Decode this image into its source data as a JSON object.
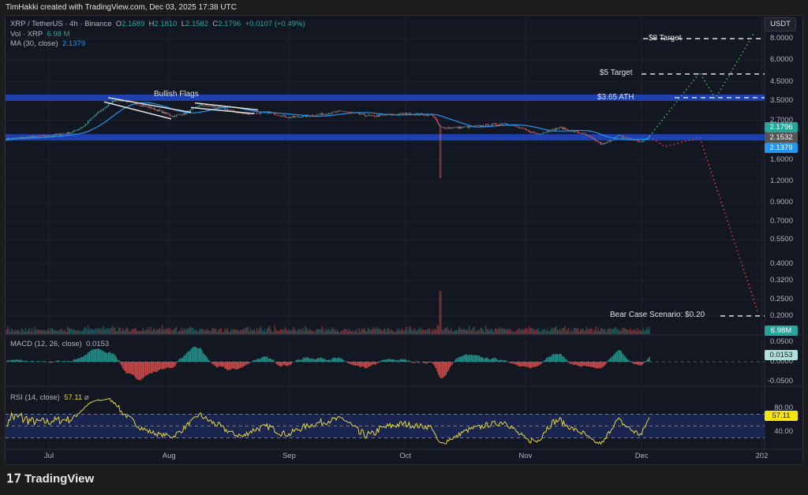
{
  "header": {
    "attribution": "TimHakki created with TradingView.com, Dec 03, 2025 17:38 UTC"
  },
  "legend": {
    "symbol": "XRP / TetherUS · 4h · Binance",
    "o_label": "O",
    "o": "2.1689",
    "h_label": "H",
    "h": "2.1810",
    "l_label": "L",
    "l": "2.1582",
    "c_label": "C",
    "c": "2.1796",
    "change": "+0.0107 (+0.49%)",
    "vol_label": "Vol · XRP",
    "vol": "6.98 M",
    "ma_label": "MA (30, close)",
    "ma": "2.1379",
    "macd_label": "MACD (12, 26, close)",
    "macd": "0.0153",
    "rsi_label": "RSI (14, close)",
    "rsi": "57.11"
  },
  "currency_button": "USDT",
  "price_tags": {
    "last": "2.1796",
    "support": "2.1532",
    "ma": "2.1379",
    "volume": "6.98M",
    "macd": "0.0153",
    "rsi": "57.11"
  },
  "colors": {
    "up": "#26a69a",
    "down": "#ef5350",
    "ma": "#2196f3",
    "band": "#1e40b0",
    "rsi": "#e8d53a",
    "bull_path": "#4caf50",
    "bear_path": "#e53946"
  },
  "annotations": {
    "flags": "Bullish Flags",
    "t8": "$8 Target",
    "t5": "$5 Target",
    "ath": "$3.65 ATH",
    "bear": "Bear Case Scenario: $0.20"
  },
  "footer": {
    "logo": "TradingView"
  },
  "chart_data": {
    "type": "candlestick",
    "scale": "log",
    "price_axis_ticks": [
      "8.0000",
      "6.0000",
      "4.5000",
      "3.5000",
      "2.7000",
      "1.6000",
      "1.2000",
      "0.9000",
      "0.7000",
      "0.5500",
      "0.4000",
      "0.3200",
      "0.2500",
      "0.2000"
    ],
    "macd_axis_ticks": [
      "0.0500",
      "0.0000",
      "-0.0500"
    ],
    "rsi_axis_ticks": [
      "80.00",
      "40.00"
    ],
    "time_ticks": [
      {
        "label": "Jul",
        "date": "2025-07-01"
      },
      {
        "label": "Aug",
        "date": "2025-08-01"
      },
      {
        "label": "Sep",
        "date": "2025-09-01"
      },
      {
        "label": "Oct",
        "date": "2025-10-01"
      },
      {
        "label": "Nov",
        "date": "2025-11-01"
      },
      {
        "label": "Dec",
        "date": "2025-12-01"
      },
      {
        "label": "202",
        "date": "2026-01-01"
      }
    ],
    "closes": [
      [
        "2025-06-20",
        2.1
      ],
      [
        "2025-06-25",
        2.15
      ],
      [
        "2025-07-01",
        2.2
      ],
      [
        "2025-07-07",
        2.3
      ],
      [
        "2025-07-10",
        2.5
      ],
      [
        "2025-07-13",
        2.9
      ],
      [
        "2025-07-18",
        3.55
      ],
      [
        "2025-07-22",
        3.45
      ],
      [
        "2025-07-28",
        3.15
      ],
      [
        "2025-08-02",
        2.85
      ],
      [
        "2025-08-05",
        2.95
      ],
      [
        "2025-08-09",
        3.3
      ],
      [
        "2025-08-14",
        3.2
      ],
      [
        "2025-08-20",
        2.95
      ],
      [
        "2025-08-27",
        3.0
      ],
      [
        "2025-09-01",
        2.8
      ],
      [
        "2025-09-08",
        2.9
      ],
      [
        "2025-09-15",
        3.05
      ],
      [
        "2025-09-22",
        2.85
      ],
      [
        "2025-10-01",
        2.95
      ],
      [
        "2025-10-08",
        2.9
      ],
      [
        "2025-10-10",
        2.45
      ],
      [
        "2025-10-15",
        2.45
      ],
      [
        "2025-10-20",
        2.5
      ],
      [
        "2025-10-27",
        2.6
      ],
      [
        "2025-11-04",
        2.25
      ],
      [
        "2025-11-10",
        2.45
      ],
      [
        "2025-11-16",
        2.25
      ],
      [
        "2025-11-21",
        1.95
      ],
      [
        "2025-11-25",
        2.2
      ],
      [
        "2025-12-01",
        2.02
      ],
      [
        "2025-12-03",
        2.18
      ]
    ],
    "flash_crash": {
      "date": "2025-10-10",
      "low": 1.25
    },
    "levels": {
      "ath": 3.65,
      "t5": 5.0,
      "t8": 8.0,
      "support": 2.1532,
      "bear": 0.2
    },
    "bull_projection": [
      [
        "2025-12-03",
        2.18
      ],
      [
        "2025-12-16",
        5.1
      ],
      [
        "2025-12-20",
        3.6
      ],
      [
        "2025-12-30",
        8.6
      ]
    ],
    "bear_projection": [
      [
        "2025-12-03",
        2.18
      ],
      [
        "2025-12-07",
        1.9
      ],
      [
        "2025-12-16",
        2.15
      ],
      [
        "2025-12-31",
        0.21
      ]
    ],
    "rsi_levels": [
      70,
      50,
      30
    ]
  }
}
